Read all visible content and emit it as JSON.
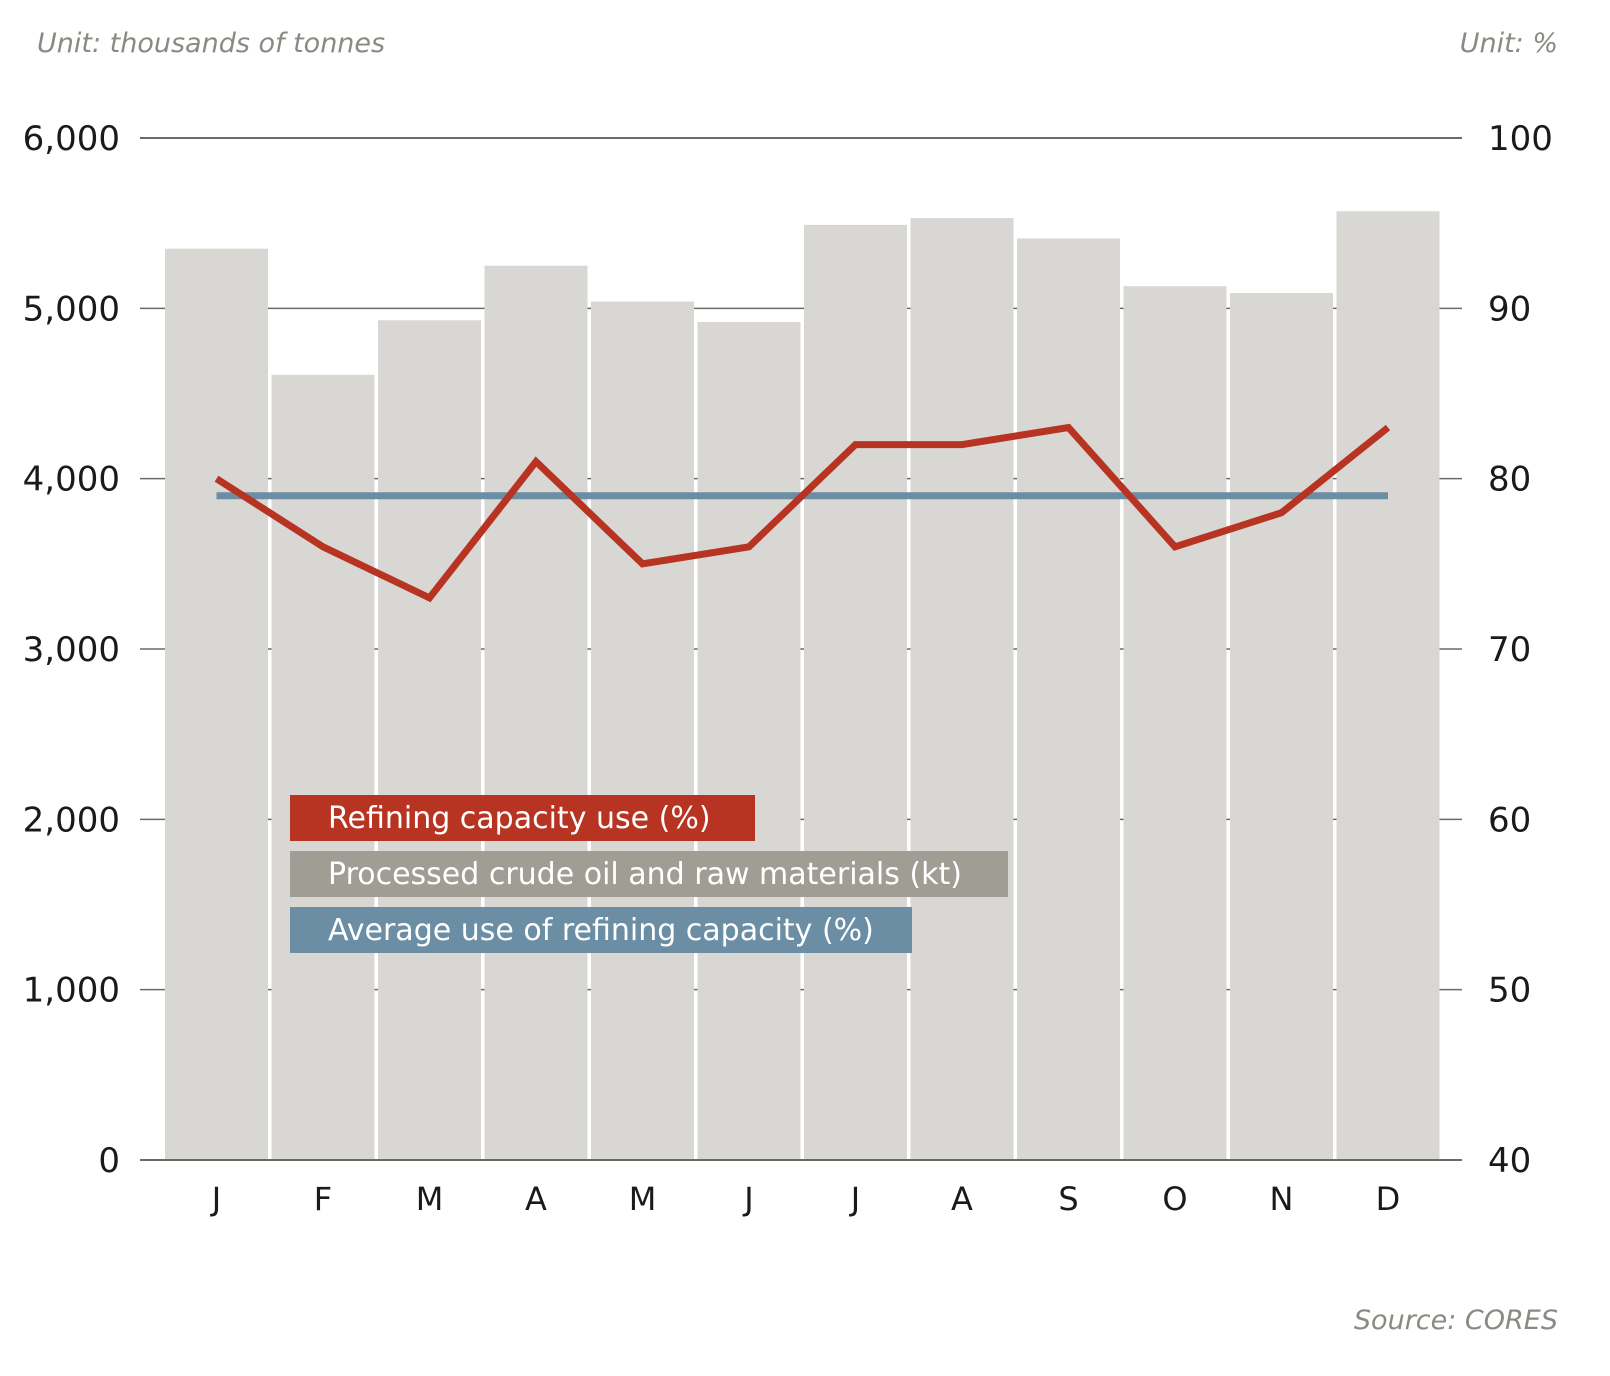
{
  "unit_left": "Unit: thousands of tonnes",
  "unit_right": "Unit: %",
  "source": "Source: CORES",
  "colors": {
    "bars": "#d9d7d3",
    "refining": "#b83422",
    "average": "#6b8ea5",
    "processed_legend": "#a09d94",
    "grid": "#6b6b64"
  },
  "chart_data": {
    "type": "bar",
    "categories": [
      "J",
      "F",
      "M",
      "A",
      "M",
      "J",
      "J",
      "A",
      "S",
      "O",
      "N",
      "D"
    ],
    "left_axis": {
      "ylim": [
        0,
        6000
      ],
      "ticks": [
        0,
        1000,
        2000,
        3000,
        4000,
        5000,
        6000
      ],
      "tick_labels": [
        "0",
        "1,000",
        "2,000",
        "3,000",
        "4,000",
        "5,000",
        "6,000"
      ]
    },
    "right_axis": {
      "ylim": [
        40,
        100
      ],
      "ticks": [
        40,
        50,
        60,
        70,
        80,
        90,
        100
      ],
      "tick_labels": [
        "40",
        "50",
        "60",
        "70",
        "80",
        "90",
        "100"
      ]
    },
    "series": [
      {
        "name": "Processed crude oil and raw materials (kt)",
        "kind": "bar",
        "axis": "left",
        "values": [
          5350,
          4610,
          4930,
          5250,
          5040,
          4920,
          5490,
          5530,
          5410,
          5130,
          5090,
          5570
        ]
      },
      {
        "name": "Refining capacity use (%)",
        "kind": "line",
        "axis": "right",
        "values": [
          80,
          76,
          73,
          81,
          75,
          76,
          82,
          82,
          83,
          76,
          78,
          83
        ]
      },
      {
        "name": "Average use of refining capacity (%)",
        "kind": "line",
        "axis": "right",
        "values": [
          79,
          79,
          79,
          79,
          79,
          79,
          79,
          79,
          79,
          79,
          79,
          79
        ]
      }
    ],
    "legend": [
      "Refining capacity use (%)",
      "Processed crude oil and raw materials (kt)",
      "Average use of refining capacity (%)"
    ],
    "title": "",
    "xlabel": "",
    "ylabel": ""
  }
}
